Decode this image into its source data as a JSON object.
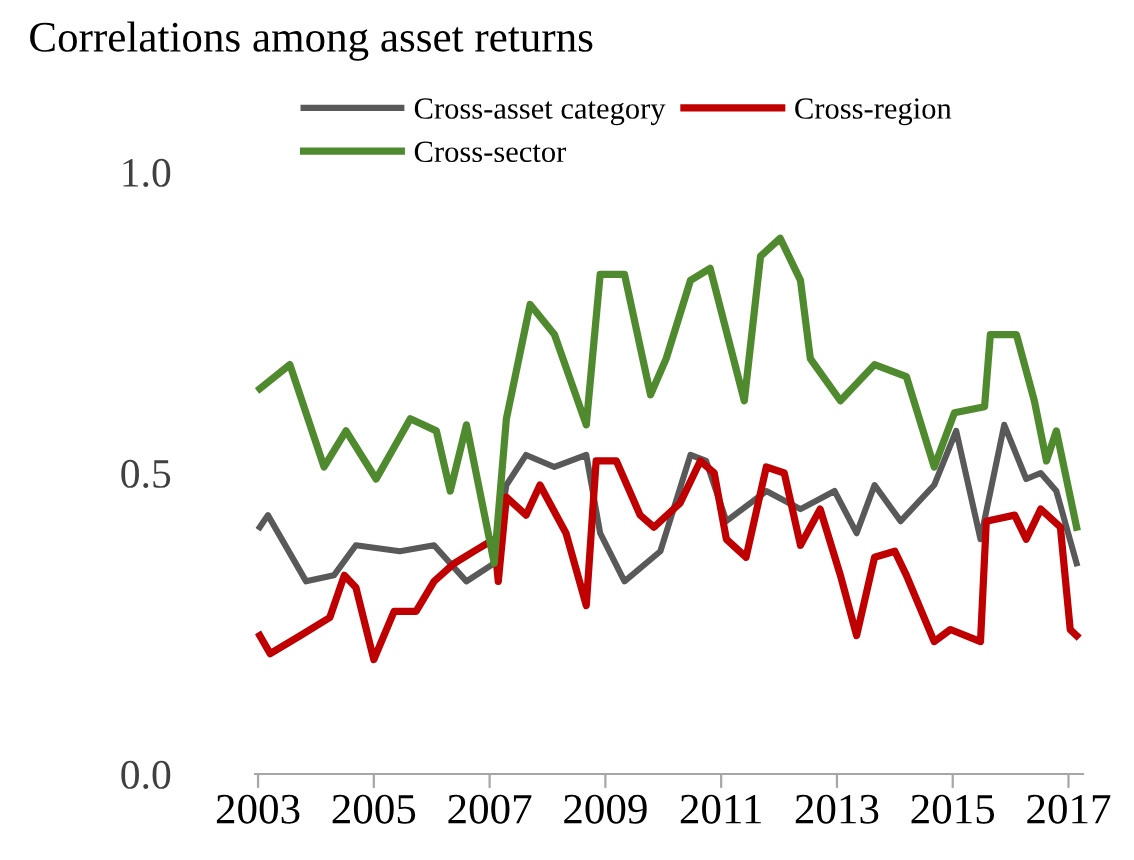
{
  "chart_data": {
    "type": "line",
    "title": "Correlations among asset returns",
    "xlim": [
      2002.95,
      2017.25
    ],
    "xticks": [
      2003,
      2005,
      2007,
      2009,
      2011,
      2013,
      2015,
      2017
    ],
    "ylim": [
      0,
      1.0
    ],
    "yticks": [
      {
        "value": 0,
        "label": "0.0"
      },
      {
        "value": 0.5,
        "label": "0.5"
      },
      {
        "value": 1.0,
        "label": "1.0"
      }
    ],
    "grid": false,
    "legend": "top",
    "marker": "none",
    "line_style": "solid",
    "series": [
      {
        "name": "Cross-asset category",
        "color": "#595959",
        "x": [
          2003.03,
          2003.17,
          2003.83,
          2004.31,
          2004.69,
          2005.45,
          2006.04,
          2006.6,
          2007.08,
          2007.29,
          2007.63,
          2008.12,
          2008.67,
          2008.91,
          2009.33,
          2009.95,
          2010.47,
          2010.74,
          2011.09,
          2011.78,
          2012.37,
          2012.96,
          2013.34,
          2013.65,
          2014.1,
          2014.68,
          2015.06,
          2015.48,
          2015.89,
          2016.27,
          2016.52,
          2016.79,
          2017.14
        ],
        "values": [
          0.41,
          0.43,
          0.32,
          0.33,
          0.38,
          0.37,
          0.38,
          0.32,
          0.35,
          0.48,
          0.53,
          0.51,
          0.53,
          0.4,
          0.32,
          0.37,
          0.53,
          0.52,
          0.42,
          0.47,
          0.44,
          0.47,
          0.4,
          0.48,
          0.42,
          0.48,
          0.57,
          0.39,
          0.58,
          0.49,
          0.5,
          0.47,
          0.35
        ]
      },
      {
        "name": "Cross-region",
        "color": "#c00000",
        "x": [
          2003.03,
          2003.21,
          2003.73,
          2004.24,
          2004.49,
          2004.69,
          2005.0,
          2005.35,
          2005.73,
          2006.04,
          2006.39,
          2006.73,
          2007.08,
          2007.15,
          2007.29,
          2007.63,
          2007.87,
          2008.32,
          2008.67,
          2008.84,
          2009.19,
          2009.6,
          2009.84,
          2010.29,
          2010.64,
          2010.88,
          2011.09,
          2011.43,
          2011.78,
          2012.09,
          2012.37,
          2012.71,
          2013.06,
          2013.34,
          2013.65,
          2014.0,
          2014.2,
          2014.68,
          2014.96,
          2015.48,
          2015.58,
          2016.07,
          2016.27,
          2016.52,
          2016.86,
          2017.03,
          2017.14
        ],
        "values": [
          0.23,
          0.2,
          0.23,
          0.26,
          0.33,
          0.31,
          0.19,
          0.27,
          0.27,
          0.32,
          0.35,
          0.37,
          0.39,
          0.32,
          0.46,
          0.43,
          0.48,
          0.4,
          0.28,
          0.52,
          0.52,
          0.43,
          0.41,
          0.45,
          0.52,
          0.5,
          0.39,
          0.36,
          0.51,
          0.5,
          0.38,
          0.44,
          0.33,
          0.23,
          0.36,
          0.37,
          0.33,
          0.22,
          0.24,
          0.22,
          0.42,
          0.43,
          0.39,
          0.44,
          0.41,
          0.24,
          0.23
        ]
      },
      {
        "name": "Cross-sector",
        "color": "#4f8a2e",
        "x": [
          2003.03,
          2003.55,
          2004.14,
          2004.52,
          2005.04,
          2005.63,
          2006.08,
          2006.32,
          2006.6,
          2007.08,
          2007.29,
          2007.7,
          2008.12,
          2008.67,
          2008.91,
          2009.33,
          2009.78,
          2010.05,
          2010.47,
          2010.81,
          2011.4,
          2011.68,
          2012.02,
          2012.37,
          2012.54,
          2013.06,
          2013.65,
          2014.2,
          2014.68,
          2015.03,
          2015.55,
          2015.65,
          2016.1,
          2016.41,
          2016.62,
          2016.79,
          2017.14
        ],
        "values": [
          0.64,
          0.68,
          0.51,
          0.57,
          0.49,
          0.59,
          0.57,
          0.47,
          0.58,
          0.35,
          0.59,
          0.78,
          0.73,
          0.58,
          0.83,
          0.83,
          0.63,
          0.69,
          0.82,
          0.84,
          0.62,
          0.86,
          0.89,
          0.82,
          0.69,
          0.62,
          0.68,
          0.66,
          0.51,
          0.6,
          0.61,
          0.73,
          0.73,
          0.62,
          0.52,
          0.57,
          0.41
        ]
      }
    ]
  }
}
